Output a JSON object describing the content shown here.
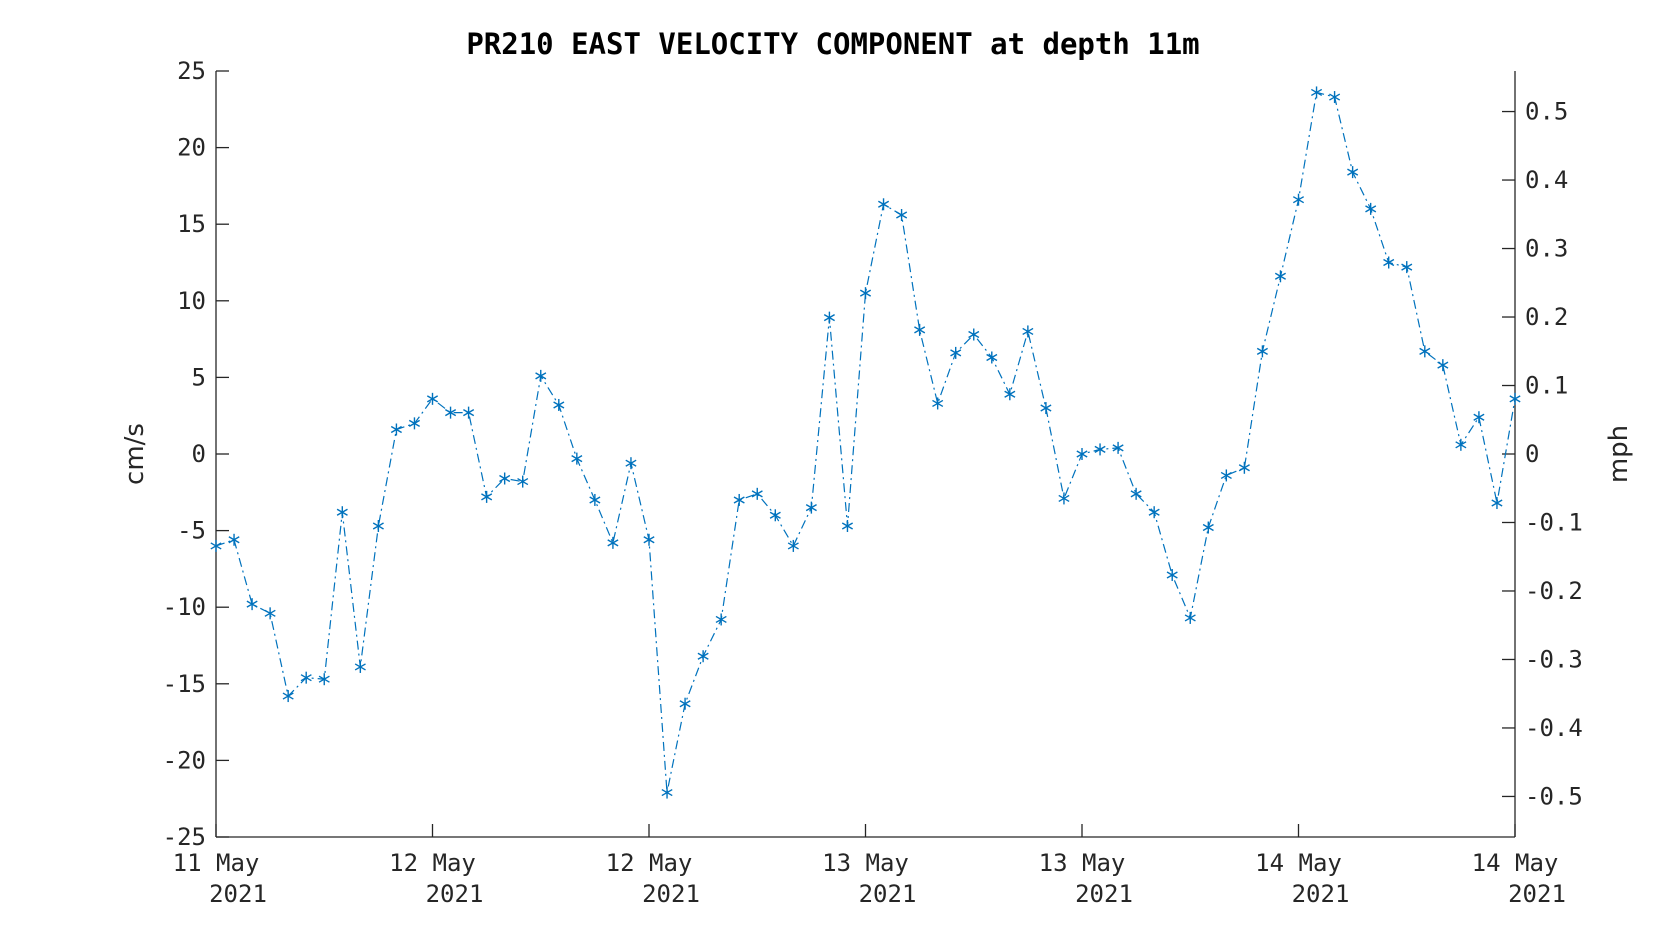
{
  "chart_data": {
    "type": "line",
    "title": "PR210 EAST VELOCITY COMPONENT at depth 11m",
    "ylabel": "cm/s",
    "ylabel_right": "mph",
    "ylim": [
      -25,
      25
    ],
    "yticks": [
      -25,
      -20,
      -15,
      -10,
      -5,
      0,
      5,
      10,
      15,
      20,
      25
    ],
    "ylim_right": [
      -0.5592,
      0.5592
    ],
    "yticks_right": [
      -0.5,
      -0.4,
      -0.3,
      -0.2,
      -0.1,
      0,
      0.1,
      0.2,
      0.3,
      0.4,
      0.5
    ],
    "xlim": [
      0,
      72
    ],
    "xticks": [
      {
        "x": 0,
        "line1": "11 May",
        "line2": "2021"
      },
      {
        "x": 12,
        "line1": "12 May",
        "line2": "2021"
      },
      {
        "x": 24,
        "line1": "12 May",
        "line2": "2021"
      },
      {
        "x": 36,
        "line1": "13 May",
        "line2": "2021"
      },
      {
        "x": 48,
        "line1": "13 May",
        "line2": "2021"
      },
      {
        "x": 60,
        "line1": "14 May",
        "line2": "2021"
      },
      {
        "x": 72,
        "line1": "14 May",
        "line2": "2021"
      }
    ],
    "grid": false,
    "color": "#0072BD",
    "marker": "asterisk",
    "linestyle": "dash-dot",
    "y": [
      -6.0,
      -5.6,
      -9.8,
      -10.4,
      -15.8,
      -14.6,
      -14.7,
      -3.8,
      -13.9,
      -4.7,
      1.6,
      2.0,
      3.6,
      2.7,
      2.7,
      -2.8,
      -1.6,
      -1.8,
      5.1,
      3.2,
      -0.3,
      -3.0,
      -5.8,
      -0.6,
      -5.6,
      -22.1,
      -16.3,
      -13.2,
      -10.8,
      -3.0,
      -2.6,
      -4.0,
      -6.0,
      -3.5,
      8.9,
      -4.7,
      10.5,
      16.3,
      15.6,
      8.1,
      3.3,
      6.6,
      7.8,
      6.3,
      3.9,
      8.0,
      3.0,
      -2.9,
      0.0,
      0.3,
      0.4,
      -2.6,
      -3.8,
      -7.9,
      -10.7,
      -4.8,
      -1.4,
      -0.9,
      6.7,
      11.6,
      16.6,
      23.6,
      23.3,
      18.4,
      16.0,
      12.5,
      12.2,
      6.7,
      5.8,
      0.6,
      2.4,
      -3.2,
      3.6
    ]
  }
}
